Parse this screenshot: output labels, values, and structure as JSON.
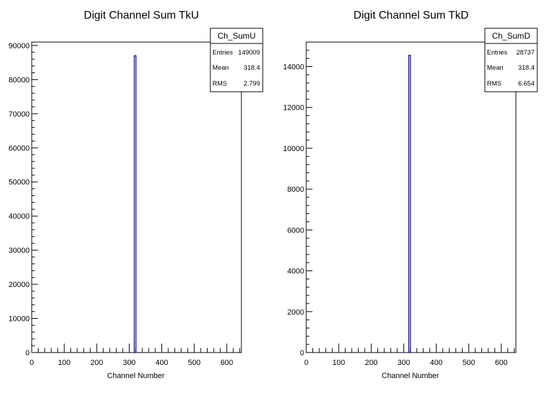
{
  "chart_data": [
    {
      "type": "bar",
      "title": "Digit Channel Sum TkU",
      "xlabel": "Channel Number",
      "ylabel": "",
      "xlim": [
        0,
        645
      ],
      "ylim": [
        0,
        91000
      ],
      "x_ticks": [
        0,
        100,
        200,
        300,
        400,
        500,
        600
      ],
      "x_tick_labels": [
        "0",
        "100",
        "200",
        "300",
        "400",
        "500",
        "600"
      ],
      "y_ticks": [
        0,
        10000,
        20000,
        30000,
        40000,
        50000,
        60000,
        70000,
        80000,
        90000
      ],
      "y_tick_labels": [
        "0",
        "10000",
        "20000",
        "30000",
        "40000",
        "50000",
        "60000",
        "70000",
        "80000",
        "90000"
      ],
      "bars": [
        {
          "x": 318,
          "value": 87000
        }
      ],
      "line_color": "#000080",
      "grid": false,
      "stats": {
        "name": "Ch_SumU",
        "rows": [
          {
            "label": "Entries",
            "value": "149009"
          },
          {
            "label": "Mean",
            "value": "318.4"
          },
          {
            "label": "RMS",
            "value": "2.799"
          }
        ]
      }
    },
    {
      "type": "bar",
      "title": "Digit Channel Sum TkD",
      "xlabel": "Channel Number",
      "ylabel": "",
      "xlim": [
        0,
        645
      ],
      "ylim": [
        0,
        15200
      ],
      "x_ticks": [
        0,
        100,
        200,
        300,
        400,
        500,
        600
      ],
      "x_tick_labels": [
        "0",
        "100",
        "200",
        "300",
        "400",
        "500",
        "600"
      ],
      "y_ticks": [
        0,
        2000,
        4000,
        6000,
        8000,
        10000,
        12000,
        14000
      ],
      "y_tick_labels": [
        "0",
        "2000",
        "4000",
        "6000",
        "8000",
        "10000",
        "12000",
        "14000"
      ],
      "bars": [
        {
          "x": 318,
          "value": 14550
        }
      ],
      "line_color": "#000080",
      "grid": false,
      "stats": {
        "name": "Ch_SumD",
        "rows": [
          {
            "label": "Entries",
            "value": "28737"
          },
          {
            "label": "Mean",
            "value": "318.4"
          },
          {
            "label": "RMS",
            "value": "6.654"
          }
        ]
      }
    }
  ]
}
